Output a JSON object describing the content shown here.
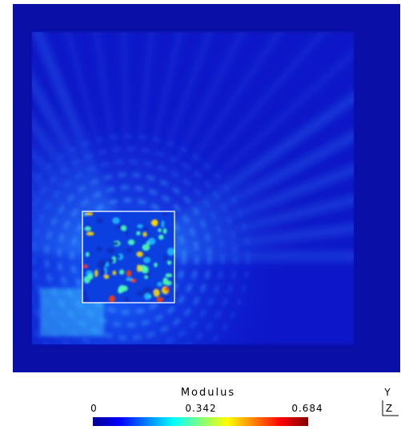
{
  "colorbar": {
    "title": "Modulus",
    "ticks": [
      "0",
      "0.342",
      "0.684"
    ]
  },
  "axes": {
    "vertical": "Y",
    "normal": "Z"
  }
}
